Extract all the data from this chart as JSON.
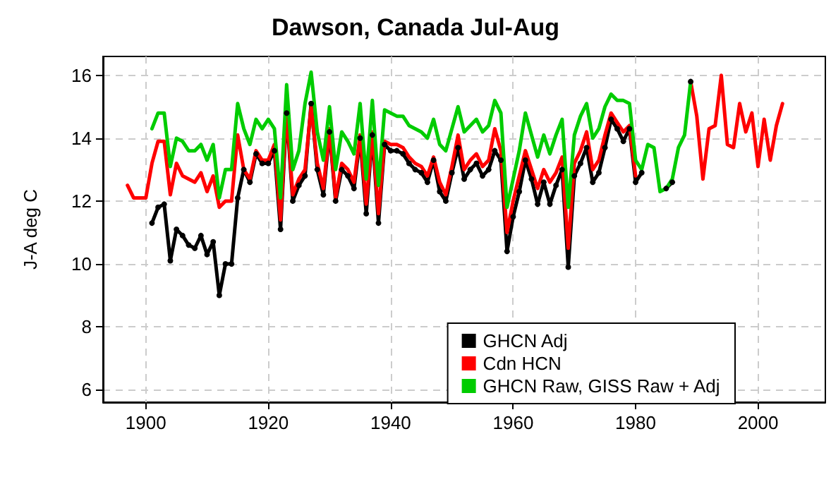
{
  "chart_data": {
    "type": "line",
    "title": "Dawson, Canada Jul-Aug",
    "ylabel": "J-A deg C",
    "xlim": [
      1893,
      2011
    ],
    "xticks": [
      1900,
      1920,
      1940,
      1960,
      1980,
      2000
    ],
    "ylim": [
      5.6,
      16.6
    ],
    "yticks": [
      6,
      8,
      10,
      12,
      14,
      16
    ],
    "grid": true,
    "legend": "bottom right",
    "series": [
      {
        "name": "GHCN Adj",
        "color": "#000000",
        "marker": "circle",
        "x": [
          1901,
          1902,
          1903,
          1904,
          1905,
          1906,
          1907,
          1908,
          1909,
          1910,
          1911,
          1912,
          1913,
          1914,
          1915,
          1916,
          1917,
          1918,
          1919,
          1920,
          1921,
          1922,
          1923,
          1924,
          1925,
          1926,
          1927,
          1928,
          1929,
          1930,
          1931,
          1932,
          1933,
          1934,
          1935,
          1936,
          1937,
          1938,
          1939,
          1940,
          1941,
          1942,
          1943,
          1944,
          1945,
          1946,
          1947,
          1948,
          1949,
          1950,
          1951,
          1952,
          1953,
          1954,
          1955,
          1956,
          1957,
          1958,
          1959,
          1960,
          1961,
          1962,
          1963,
          1964,
          1965,
          1966,
          1967,
          1968,
          1969,
          1970,
          1971,
          1972,
          1973,
          1974,
          1975,
          1976,
          1977,
          1978,
          1979,
          1980,
          1981,
          1982,
          1983,
          1984,
          1985,
          1986,
          1987,
          1988,
          1989
        ],
        "values": [
          11.3,
          11.8,
          11.9,
          10.1,
          11.1,
          10.9,
          10.6,
          10.5,
          10.9,
          10.3,
          10.7,
          9.0,
          10.0,
          10.0,
          12.1,
          13.0,
          12.6,
          13.5,
          13.2,
          13.2,
          13.6,
          11.1,
          14.8,
          12.0,
          12.5,
          12.8,
          15.1,
          13.0,
          12.2,
          14.2,
          12.0,
          13.0,
          12.8,
          12.4,
          14.0,
          11.6,
          14.1,
          11.3,
          13.8,
          13.6,
          13.6,
          13.5,
          13.2,
          13.0,
          12.9,
          12.6,
          13.3,
          12.3,
          12.0,
          12.9,
          13.7,
          12.7,
          13.0,
          13.2,
          12.8,
          13.0,
          13.6,
          13.3,
          10.4,
          11.5,
          12.3,
          13.3,
          12.7,
          11.9,
          12.6,
          11.9,
          12.5,
          13.0,
          9.9,
          12.8,
          13.2,
          13.7,
          12.6,
          12.9,
          13.7,
          14.6,
          14.3,
          13.9,
          14.3,
          12.6,
          12.9,
          null,
          null,
          null,
          12.4,
          12.6,
          null,
          null,
          15.8
        ]
      },
      {
        "name": "Cdn HCN",
        "color": "#ff0000",
        "x": [
          1897,
          1898,
          1899,
          1900,
          1901,
          1902,
          1903,
          1904,
          1905,
          1906,
          1907,
          1908,
          1909,
          1910,
          1911,
          1912,
          1913,
          1914,
          1915,
          1916,
          1917,
          1918,
          1919,
          1920,
          1921,
          1922,
          1923,
          1924,
          1925,
          1926,
          1927,
          1928,
          1929,
          1930,
          1931,
          1932,
          1933,
          1934,
          1935,
          1936,
          1937,
          1938,
          1939,
          1940,
          1941,
          1942,
          1943,
          1944,
          1945,
          1946,
          1947,
          1948,
          1949,
          1950,
          1951,
          1952,
          1953,
          1954,
          1955,
          1956,
          1957,
          1958,
          1959,
          1960,
          1961,
          1962,
          1963,
          1964,
          1965,
          1966,
          1967,
          1968,
          1969,
          1970,
          1971,
          1972,
          1973,
          1974,
          1975,
          1976,
          1977,
          1978,
          1979,
          1980,
          1981,
          1982,
          1983,
          1984,
          1985,
          1986,
          1987,
          1988,
          1989,
          1990,
          1991,
          1992,
          1993,
          1994,
          1995,
          1996,
          1997,
          1998,
          1999,
          2000,
          2001,
          2002,
          2003,
          2004
        ],
        "values": [
          12.5,
          12.1,
          12.1,
          12.1,
          13.2,
          13.9,
          13.9,
          12.2,
          13.2,
          12.8,
          12.7,
          12.6,
          12.9,
          12.3,
          12.8,
          11.8,
          12.0,
          12.0,
          14.1,
          13.0,
          12.7,
          13.6,
          13.3,
          13.3,
          13.8,
          11.4,
          14.9,
          12.2,
          12.7,
          13.0,
          15.0,
          13.2,
          12.4,
          14.3,
          12.1,
          13.2,
          13.0,
          12.6,
          14.1,
          11.9,
          14.2,
          11.6,
          13.9,
          13.8,
          13.8,
          13.7,
          13.4,
          13.2,
          13.1,
          12.8,
          13.4,
          12.6,
          12.2,
          13.1,
          14.1,
          13.0,
          13.3,
          13.5,
          13.1,
          13.3,
          14.3,
          13.6,
          11.0,
          12.0,
          12.8,
          13.6,
          13.0,
          12.4,
          13.0,
          12.6,
          12.9,
          13.4,
          10.5,
          13.2,
          13.6,
          14.2,
          13.0,
          13.3,
          14.1,
          14.8,
          14.5,
          14.2,
          14.4,
          12.8,
          null,
          null,
          null,
          null,
          null,
          null,
          null,
          null,
          15.8,
          14.7,
          12.7,
          14.3,
          14.4,
          16.0,
          13.8,
          13.7,
          15.1,
          14.2,
          14.8,
          13.1,
          14.6,
          13.3,
          14.4,
          15.1
        ]
      },
      {
        "name": "GHCN Raw, GISS Raw + Adj",
        "color": "#00cc00",
        "x": [
          1901,
          1902,
          1903,
          1904,
          1905,
          1906,
          1907,
          1908,
          1909,
          1910,
          1911,
          1912,
          1913,
          1914,
          1915,
          1916,
          1917,
          1918,
          1919,
          1920,
          1921,
          1922,
          1923,
          1924,
          1925,
          1926,
          1927,
          1928,
          1929,
          1930,
          1931,
          1932,
          1933,
          1934,
          1935,
          1936,
          1937,
          1938,
          1939,
          1940,
          1941,
          1942,
          1943,
          1944,
          1945,
          1946,
          1947,
          1948,
          1949,
          1950,
          1951,
          1952,
          1953,
          1954,
          1955,
          1956,
          1957,
          1958,
          1959,
          1960,
          1961,
          1962,
          1963,
          1964,
          1965,
          1966,
          1967,
          1968,
          1969,
          1970,
          1971,
          1972,
          1973,
          1974,
          1975,
          1976,
          1977,
          1978,
          1979,
          1980,
          1981,
          1982,
          1983,
          1984,
          1985,
          1986,
          1987,
          1988,
          1989
        ],
        "values": [
          14.3,
          14.8,
          14.8,
          13.1,
          14.0,
          13.9,
          13.6,
          13.6,
          13.8,
          13.3,
          13.8,
          12.1,
          13.0,
          13.0,
          15.1,
          14.3,
          13.8,
          14.6,
          14.3,
          14.6,
          14.3,
          12.1,
          15.7,
          13.0,
          13.6,
          15.1,
          16.1,
          14.2,
          13.3,
          15.0,
          13.0,
          14.2,
          13.9,
          13.5,
          15.1,
          12.7,
          15.2,
          12.5,
          14.9,
          14.8,
          14.7,
          14.7,
          14.4,
          14.3,
          14.2,
          14.0,
          14.6,
          13.8,
          13.6,
          14.3,
          15.0,
          14.2,
          14.4,
          14.6,
          14.2,
          14.4,
          15.2,
          14.8,
          11.8,
          12.7,
          13.6,
          14.8,
          14.1,
          13.4,
          14.1,
          13.5,
          14.1,
          14.6,
          11.8,
          14.1,
          14.7,
          15.1,
          14.0,
          14.3,
          15.0,
          15.4,
          15.2,
          15.2,
          15.1,
          13.3,
          13.0,
          13.8,
          13.7,
          12.3,
          12.4,
          12.7,
          13.7,
          14.1,
          15.8
        ]
      }
    ]
  }
}
